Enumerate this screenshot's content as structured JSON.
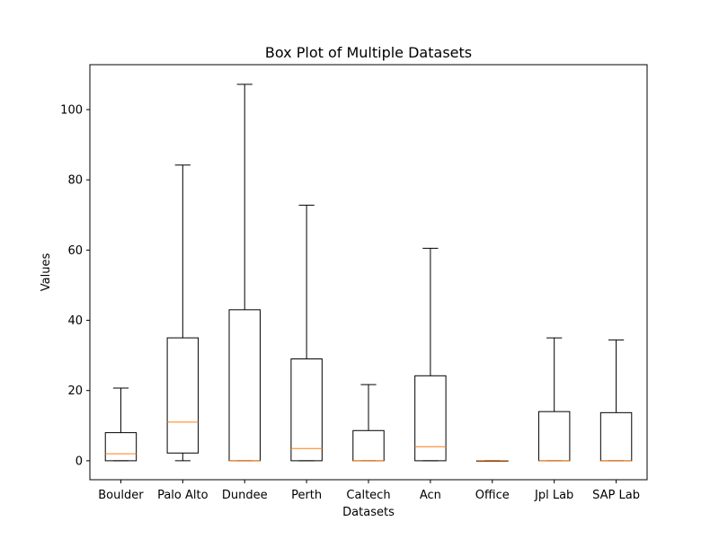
{
  "chart_data": {
    "type": "box",
    "title": "Box Plot of Multiple Datasets",
    "xlabel": "Datasets",
    "ylabel": "Values",
    "ylim": [
      -5.4,
      112.8
    ],
    "yticks": [
      0,
      20,
      40,
      60,
      80,
      100
    ],
    "grid": false,
    "categories": [
      "Boulder",
      "Palo Alto",
      "Dundee",
      "Perth",
      "Caltech",
      "Acn",
      "Office",
      "Jpl Lab",
      "SAP Lab"
    ],
    "boxes": [
      {
        "name": "Boulder",
        "whisker_low": 0,
        "q1": 0,
        "median": 2.0,
        "q3": 8.0,
        "whisker_high": 20.7
      },
      {
        "name": "Palo Alto",
        "whisker_low": 0,
        "q1": 2.2,
        "median": 11.0,
        "q3": 35.0,
        "whisker_high": 84.2
      },
      {
        "name": "Dundee",
        "whisker_low": 0,
        "q1": 0,
        "median": 0,
        "q3": 43.0,
        "whisker_high": 107.2
      },
      {
        "name": "Perth",
        "whisker_low": 0,
        "q1": 0,
        "median": 3.5,
        "q3": 29.0,
        "whisker_high": 72.8
      },
      {
        "name": "Caltech",
        "whisker_low": 0,
        "q1": 0,
        "median": 0,
        "q3": 8.6,
        "whisker_high": 21.7
      },
      {
        "name": "Acn",
        "whisker_low": 0,
        "q1": 0,
        "median": 4.0,
        "q3": 24.2,
        "whisker_high": 60.5
      },
      {
        "name": "Office",
        "whisker_low": 0,
        "q1": 0,
        "median": 0,
        "q3": 0,
        "whisker_high": 0
      },
      {
        "name": "Jpl Lab",
        "whisker_low": 0,
        "q1": 0,
        "median": 0,
        "q3": 14.0,
        "whisker_high": 35.0
      },
      {
        "name": "SAP Lab",
        "whisker_low": 0,
        "q1": 0,
        "median": 0,
        "q3": 13.7,
        "whisker_high": 34.4
      }
    ],
    "colors": {
      "box": "#000000",
      "median": "#ff7f0e",
      "axes": "#000000",
      "background": "#ffffff"
    }
  }
}
